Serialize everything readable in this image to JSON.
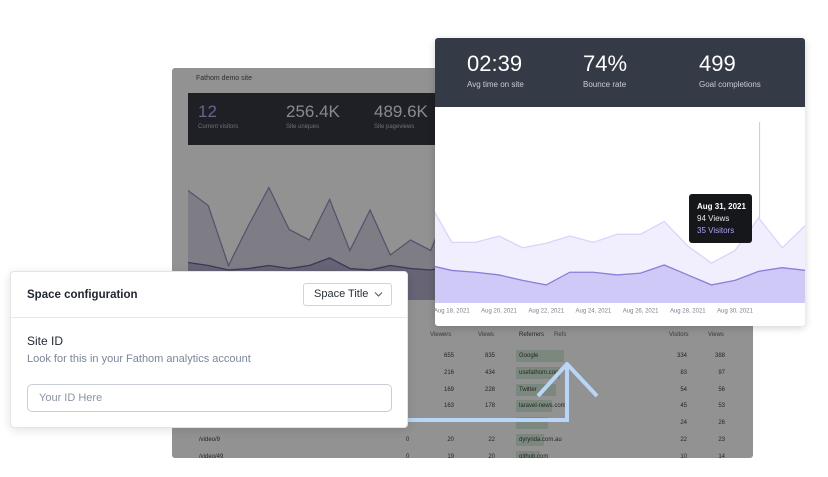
{
  "background_dashboard": {
    "site_name": "Fathom demo site",
    "stats": [
      {
        "value": "12",
        "label": "Current visitors"
      },
      {
        "value": "256.4K",
        "label": "Site uniques"
      },
      {
        "value": "489.6K",
        "label": "Site pageviews"
      }
    ],
    "chart": {
      "type": "area",
      "ylim": [
        0,
        100
      ],
      "series": [
        {
          "color": "#8f89b5",
          "values": [
            73,
            63,
            23,
            50,
            75,
            47,
            40,
            67,
            33,
            60,
            30,
            40,
            33,
            67
          ]
        },
        {
          "color": "#5b5590",
          "values": [
            25,
            23,
            20,
            21,
            23,
            21,
            23,
            28,
            21,
            20,
            23,
            21,
            20,
            23
          ]
        }
      ]
    },
    "pages_table": {
      "columns": [
        "Viewers",
        "Views"
      ],
      "rows": [
        {
          "viewers": "655",
          "views": "835"
        },
        {
          "viewers": "216",
          "views": "434"
        },
        {
          "viewers": "169",
          "views": "228"
        },
        {
          "viewers": "163",
          "views": "178"
        },
        {
          "page": "/video/9",
          "count": "0",
          "viewers": "20",
          "views": "22"
        },
        {
          "page": "/video/49",
          "count": "0",
          "viewers": "19",
          "views": "20"
        }
      ]
    },
    "referrers_table": {
      "tabs": [
        "Referrers",
        "Refs"
      ],
      "columns": [
        "Visitors",
        "Views"
      ],
      "rows": [
        {
          "name": "Google",
          "visitors": "334",
          "views": "388"
        },
        {
          "name": "usefathom.com",
          "visitors": "83",
          "views": "97"
        },
        {
          "name": "Twitter",
          "visitors": "54",
          "views": "56"
        },
        {
          "name": "laravel-news.com",
          "visitors": "45",
          "views": "53"
        },
        {
          "visitors": "24",
          "views": "26"
        },
        {
          "name": "dyrynda.com.au",
          "visitors": "22",
          "views": "23"
        },
        {
          "name": "github.com",
          "visitors": "10",
          "views": "14"
        }
      ]
    }
  },
  "overview_card": {
    "stats": [
      {
        "value": "02:39",
        "label": "Avg time on site"
      },
      {
        "value": "74%",
        "label": "Bounce rate"
      },
      {
        "value": "499",
        "label": "Goal completions"
      }
    ],
    "chart": {
      "type": "area",
      "categories": [
        null,
        "Aug 18, 2021",
        null,
        "Aug 20, 2021",
        null,
        "Aug 22, 2021",
        null,
        "Aug 24, 2021",
        null,
        "Aug 26, 2021",
        null,
        "Aug 28, 2021",
        null,
        "Aug 30, 2021",
        null,
        null,
        null
      ],
      "ylim": [
        0,
        210
      ],
      "series": [
        {
          "color": "#d9d4fa",
          "fill": "#f1effe",
          "values": [
            113,
            67,
            67,
            74,
            61,
            66,
            74,
            67,
            76,
            76,
            90,
            63,
            44,
            58,
            94,
            61,
            86
          ]
        },
        {
          "color": "#8a7fd8",
          "fill": "#cfc9f7",
          "values": [
            42,
            36,
            34,
            31,
            25,
            20,
            34,
            34,
            31,
            33,
            42,
            31,
            20,
            25,
            35,
            39,
            36
          ]
        }
      ]
    },
    "tooltip": {
      "date": "Aug 31, 2021",
      "views": "94 Views",
      "visitors": "35 Visitors"
    }
  },
  "config_card": {
    "title": "Space configuration",
    "select": "Space Title",
    "field_label": "Site ID",
    "help": "Look for this in your Fathom analytics account",
    "placeholder": "Your ID Here"
  }
}
